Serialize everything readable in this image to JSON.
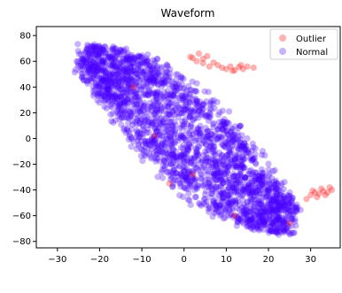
{
  "chart_data": {
    "type": "scatter",
    "title": "Waveform",
    "xlabel": "",
    "ylabel": "",
    "xlim": [
      -35,
      37
    ],
    "ylim": [
      -85,
      87
    ],
    "xticks": [
      -30,
      -20,
      -10,
      0,
      10,
      20,
      30
    ],
    "yticks": [
      -80,
      -60,
      -40,
      -20,
      0,
      20,
      40,
      60,
      80
    ],
    "grid": false,
    "legend_position": "top-right",
    "series": [
      {
        "name": "Outlier",
        "color": "#ff0000",
        "alpha": 0.3,
        "points": [
          [
            9.0,
            55.0
          ],
          [
            10.0,
            54.0
          ],
          [
            11.0,
            56.0
          ],
          [
            12.0,
            53.0
          ],
          [
            13.0,
            55.5
          ],
          [
            14.0,
            54.0
          ],
          [
            15.0,
            56.0
          ],
          [
            16.5,
            55.0
          ],
          [
            11.5,
            52.5
          ],
          [
            13.5,
            57.0
          ],
          [
            8.0,
            57.0
          ],
          [
            6.0,
            56.0
          ],
          [
            4.5,
            58.5
          ],
          [
            3.0,
            60.0
          ],
          [
            2.0,
            62.5
          ],
          [
            1.5,
            63.5
          ],
          [
            3.5,
            66.0
          ],
          [
            4.5,
            62.0
          ],
          [
            5.5,
            64.0
          ],
          [
            7.0,
            59.0
          ],
          [
            30.0,
            -44.0
          ],
          [
            31.0,
            -42.0
          ],
          [
            32.0,
            -43.0
          ],
          [
            33.0,
            -41.0
          ],
          [
            34.0,
            -42.0
          ],
          [
            35.0,
            -40.0
          ],
          [
            31.5,
            -45.5
          ],
          [
            33.5,
            -44.0
          ],
          [
            34.5,
            -38.0
          ],
          [
            30.5,
            -40.5
          ],
          [
            29.0,
            -47.0
          ],
          [
            32.5,
            -39.0
          ],
          [
            -7.0,
            2.0
          ],
          [
            2.0,
            -28.0
          ],
          [
            -12.0,
            40.0
          ],
          [
            25.0,
            -66.0
          ],
          [
            12.0,
            -60.0
          ],
          [
            -3.5,
            -35.0
          ]
        ]
      },
      {
        "name": "Normal",
        "color": "#4a00ff",
        "alpha": 0.3,
        "points": []
      }
    ]
  }
}
